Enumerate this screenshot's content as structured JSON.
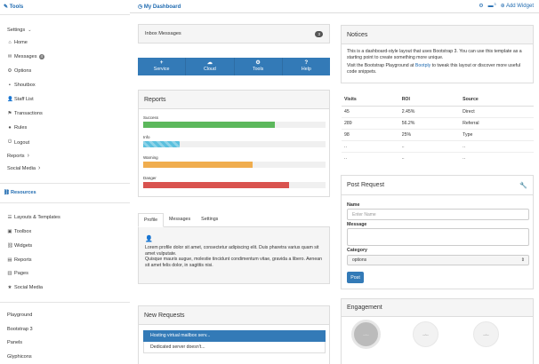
{
  "sidebar": {
    "brand": "Tools",
    "settings": {
      "label": "Settings"
    },
    "items": [
      {
        "label": "Home",
        "icon": "home-icon",
        "glyph": "⌂"
      },
      {
        "label": "Messages",
        "icon": "envelope-icon",
        "glyph": "✉",
        "badge": "4"
      },
      {
        "label": "Options",
        "icon": "gear-icon",
        "glyph": "⚙"
      },
      {
        "label": "Shoutbox",
        "icon": "comment-icon",
        "glyph": "▪"
      },
      {
        "label": "Staff List",
        "icon": "user-icon",
        "glyph": "👤"
      },
      {
        "label": "Transactions",
        "icon": "flag-icon",
        "glyph": "⚑"
      },
      {
        "label": "Rules",
        "icon": "exclamation-icon",
        "glyph": "●"
      },
      {
        "label": "Logout",
        "icon": "off-icon",
        "glyph": "⏻"
      },
      {
        "label": "Reports"
      },
      {
        "label": "Social Media"
      }
    ],
    "resources_label": "Resources",
    "resources": [
      {
        "label": "Layouts & Templates",
        "icon": "list-icon",
        "glyph": "☰"
      },
      {
        "label": "Toolbox",
        "icon": "briefcase-icon",
        "glyph": "▣"
      },
      {
        "label": "Widgets",
        "icon": "link-icon",
        "glyph": "⛓"
      },
      {
        "label": "Reports",
        "icon": "list-alt-icon",
        "glyph": "▤"
      },
      {
        "label": "Pages",
        "icon": "book-icon",
        "glyph": "▥"
      },
      {
        "label": "Social Media",
        "icon": "star-icon",
        "glyph": "★"
      }
    ],
    "links": [
      {
        "label": "Playground"
      },
      {
        "label": "Bootstrap 3"
      },
      {
        "label": "Panels"
      },
      {
        "label": "Glyphicons"
      }
    ]
  },
  "topbar": {
    "title": "My Dashboard",
    "messages_count": "3",
    "add_widget": "Add Widget"
  },
  "inbox": {
    "label": "Inbox Messages",
    "count": "3"
  },
  "actions": [
    {
      "label": "Service",
      "icon": "plus-icon",
      "glyph": "+"
    },
    {
      "label": "Cloud",
      "icon": "cloud-icon",
      "glyph": "☁"
    },
    {
      "label": "Tools",
      "icon": "cog-icon",
      "glyph": "⚙"
    },
    {
      "label": "Help",
      "icon": "question-icon",
      "glyph": "?"
    }
  ],
  "reports": {
    "title": "Reports",
    "bars": [
      {
        "label": "Success",
        "percent": 72,
        "color": "#5cb85c",
        "striped": false
      },
      {
        "label": "Info",
        "percent": 20,
        "color": "#5bc0de",
        "striped": true
      },
      {
        "label": "Warning",
        "percent": 60,
        "color": "#f0ad4e",
        "striped": false
      },
      {
        "label": "Danger",
        "percent": 80,
        "color": "#d9534f",
        "striped": false
      }
    ]
  },
  "profile_tabs": {
    "tabs": [
      "Profile",
      "Messages",
      "Settings"
    ],
    "active": "Profile",
    "text1": "Lorem profile dolor sit amet, consectetur adipiscing elit. Duis pharetra varius quam sit amet vulputate.",
    "text2": "Quisque mauris augue, molestie tincidunt condimentum vitae, gravida a libero. Aenean sit amet felis dolor, in sagittis nisi."
  },
  "new_requests": {
    "title": "New Requests",
    "items": [
      "Hosting virtual mailbox serv...",
      "Dedicated server doesn't..."
    ]
  },
  "notices": {
    "title": "Notices",
    "p1": "This is a dashboard-style layout that uses Bootstrap 3. You can use this template as a starting point to create something more unique.",
    "p2_before": "Visit the Bootstrap Playground at ",
    "p2_link": "Bootply",
    "p2_after": " to tweak this layout or discover more useful code snippets."
  },
  "visits_table": {
    "columns": [
      "Visits",
      "ROI",
      "Source"
    ],
    "rows": [
      [
        "45",
        "2.45%",
        "Direct"
      ],
      [
        "289",
        "56.2%",
        "Referral"
      ],
      [
        "98",
        "25%",
        "Type"
      ],
      [
        "..",
        "..",
        ".."
      ],
      [
        "..",
        "..",
        ".."
      ]
    ]
  },
  "post_request": {
    "title": "Post Request",
    "name_label": "Name",
    "name_placeholder": "Enter Name",
    "message_label": "Message",
    "category_label": "Category",
    "category_value": "options",
    "submit": "Post"
  },
  "engagement": {
    "title": "Engagement",
    "dials": [
      "--:--",
      "--:--",
      "--:--"
    ]
  }
}
